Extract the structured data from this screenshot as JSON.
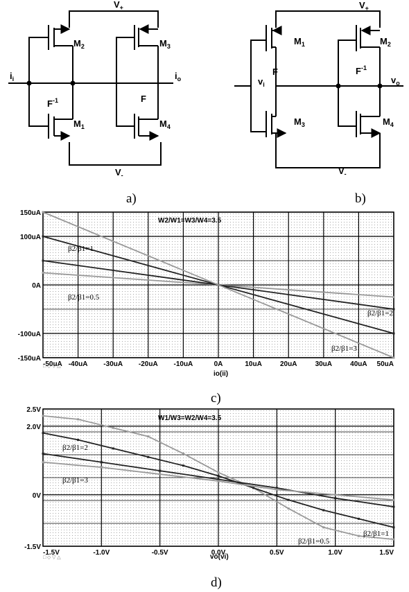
{
  "circuit_a": {
    "caption": "a)",
    "v_plus": "V",
    "v_plus_sub": "+",
    "v_minus": "V",
    "v_minus_sub": "-",
    "input": "i",
    "input_sub": "i",
    "output": "i",
    "output_sub": "o",
    "m_top_left": "M",
    "m_top_left_sub": "2",
    "m_top_right": "M",
    "m_top_right_sub": "3",
    "m_bot_left": "M",
    "m_bot_left_sub": "1",
    "m_bot_right": "M",
    "m_bot_right_sub": "4",
    "block_left": "F",
    "block_left_sup": "-1",
    "block_right": "F"
  },
  "circuit_b": {
    "caption": "b)",
    "v_plus": "V",
    "v_plus_sub": "+",
    "v_minus": "V",
    "v_minus_sub": "-",
    "input": "v",
    "input_sub": "i",
    "output": "v",
    "output_sub": "o",
    "m_top_left": "M",
    "m_top_left_sub": "1",
    "m_top_right": "M",
    "m_top_right_sub": "2",
    "m_bot_left": "M",
    "m_bot_left_sub": "3",
    "m_bot_right": "M",
    "m_bot_right_sub": "4",
    "block_left": "F",
    "block_right": "F",
    "block_right_sup": "-1"
  },
  "plot_c": {
    "caption": "c)",
    "title": "W2/W1=W3/W4=3.5",
    "xlabel": "io(ii)",
    "x_ticks": [
      "-50uA",
      "-40uA",
      "-30uA",
      "-20uA",
      "-10uA",
      "0A",
      "10uA",
      "20uA",
      "30uA",
      "40uA",
      "50uA"
    ],
    "y_ticks": [
      "150uA",
      "100uA",
      "0A",
      "-100uA",
      "-150uA"
    ],
    "annotations": [
      "β2/β1=1",
      "β2/β1=0.5",
      "β2/β1=2",
      "β2/β1=3"
    ],
    "legend_marks": "□ ◇ ▽ △",
    "line_color": "#222222",
    "light_color": "#999999"
  },
  "plot_d": {
    "caption": "d)",
    "title": "W1/W3=W2/W4=3.5",
    "xlabel": "vo(vi)",
    "x_ticks": [
      "-1.5V",
      "-1.0V",
      "-0.5V",
      "0.0V",
      "0.5V",
      "1.0V",
      "1.5V"
    ],
    "y_ticks": [
      "2.5V",
      "2.0V",
      "0V",
      "-1.5V"
    ],
    "annotations": [
      "β2/β1=2",
      "β2/β1=3",
      "β2/β1=1",
      "β2/β1=0.5"
    ],
    "legend_marks": "□ ◇ ▽ △"
  },
  "chart_data": [
    {
      "type": "line",
      "title": "W2/W1=W3/W4=3.5",
      "xlabel": "io(ii)",
      "ylabel": "",
      "xlim": [
        -50,
        50
      ],
      "ylim": [
        -150,
        150
      ],
      "x_unit": "uA",
      "y_unit": "uA",
      "series": [
        {
          "name": "β2/β1=0.5",
          "x": [
            -50,
            50
          ],
          "y": [
            25,
            -25
          ]
        },
        {
          "name": "β2/β1=1",
          "x": [
            -50,
            50
          ],
          "y": [
            50,
            -50
          ]
        },
        {
          "name": "β2/β1=2",
          "x": [
            -50,
            50
          ],
          "y": [
            100,
            -100
          ]
        },
        {
          "name": "β2/β1=3",
          "x": [
            -50,
            50
          ],
          "y": [
            150,
            -150
          ]
        }
      ]
    },
    {
      "type": "line",
      "title": "W1/W3=W2/W4=3.5",
      "xlabel": "vo(vi)",
      "ylabel": "",
      "xlim": [
        -1.5,
        1.5
      ],
      "ylim": [
        -1.5,
        2.5
      ],
      "x_unit": "V",
      "y_unit": "V",
      "series": [
        {
          "name": "β2/β1=0.5",
          "x": [
            -1.5,
            -1.2,
            -0.9,
            -0.6,
            -0.3,
            0,
            0.3,
            0.6,
            0.9,
            1.2,
            1.5
          ],
          "y": [
            2.3,
            2.2,
            1.95,
            1.7,
            1.2,
            0.65,
            0.2,
            -0.4,
            -0.95,
            -1.2,
            -1.3
          ]
        },
        {
          "name": "β2/β1=1",
          "x": [
            -1.5,
            -1.2,
            -0.9,
            -0.6,
            -0.3,
            0,
            0.3,
            0.6,
            0.9,
            1.2,
            1.5
          ],
          "y": [
            1.8,
            1.6,
            1.35,
            1.1,
            0.85,
            0.55,
            0.2,
            -0.15,
            -0.45,
            -0.7,
            -0.95
          ]
        },
        {
          "name": "β2/β1=2",
          "x": [
            -1.5,
            -1.0,
            -0.5,
            0,
            0.5,
            1.0,
            1.5
          ],
          "y": [
            1.2,
            0.95,
            0.7,
            0.45,
            0.2,
            -0.1,
            -0.35
          ]
        },
        {
          "name": "β2/β1=3",
          "x": [
            -1.5,
            -1.0,
            -0.5,
            0,
            0.5,
            1.0,
            1.5
          ],
          "y": [
            0.95,
            0.8,
            0.6,
            0.4,
            0.15,
            0,
            -0.15
          ]
        }
      ]
    }
  ]
}
